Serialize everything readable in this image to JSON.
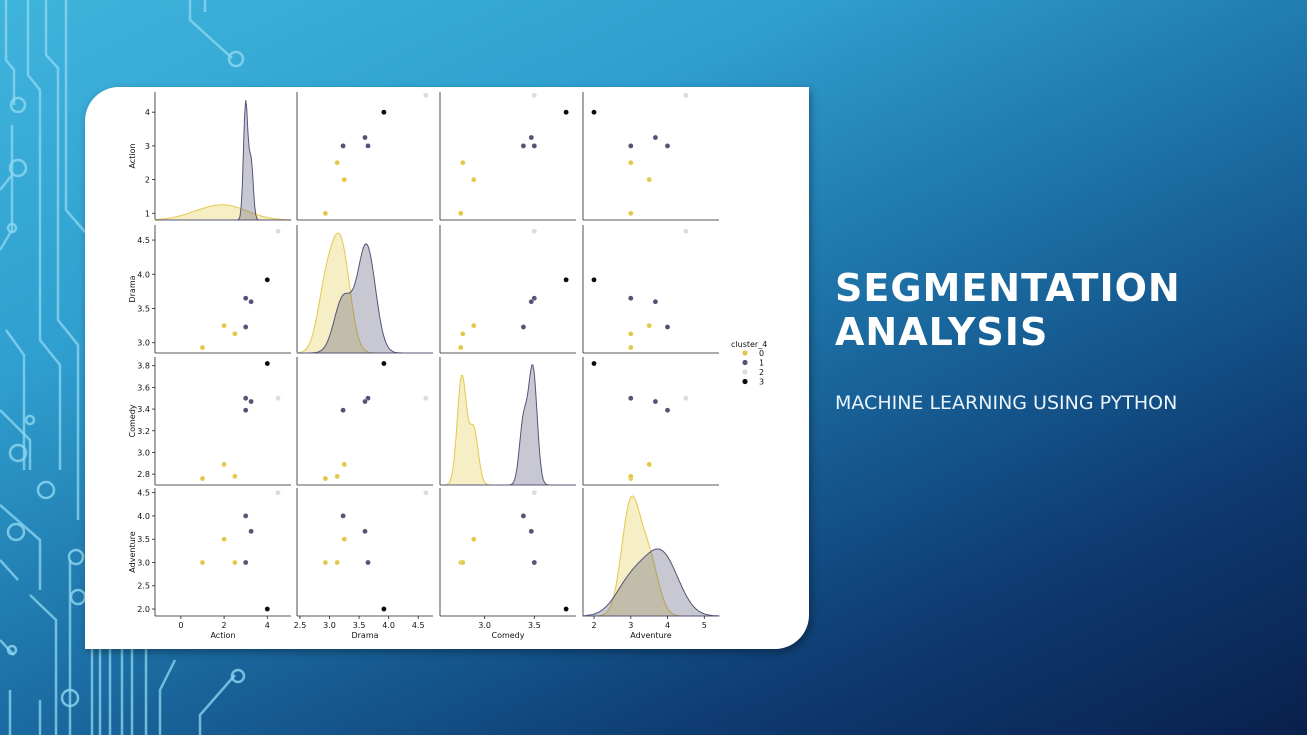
{
  "slide": {
    "title": "SEGMENTATION ANALYSIS",
    "subtitle": "MACHINE LEARNING USING PYTHON"
  },
  "colors": {
    "cluster_0": "#e3c94b",
    "cluster_1": "#545477",
    "cluster_2": "#dcdcdc",
    "cluster_3": "#0a0a0a",
    "circuit_line": "#8fd8f0"
  },
  "chart_data": {
    "type": "scatter",
    "subtype": "pairplot",
    "variables": [
      "Action",
      "Drama",
      "Comedy",
      "Adventure"
    ],
    "legend": {
      "title": "cluster_4",
      "entries": [
        "0",
        "1",
        "2",
        "3"
      ],
      "placement": "right"
    },
    "axes": {
      "Action": {
        "range": [
          -1.2,
          5.1
        ],
        "ticks": [
          0,
          2,
          4
        ],
        "ylim": [
          0.8,
          4.6
        ],
        "yticks": [
          1,
          2,
          3,
          4
        ]
      },
      "Drama": {
        "range": [
          2.45,
          4.75
        ],
        "ticks": [
          2.5,
          3.0,
          3.5,
          4.0,
          4.5
        ],
        "ylim": [
          2.85,
          4.72
        ],
        "yticks": [
          3.0,
          3.5,
          4.0,
          4.5
        ]
      },
      "Comedy": {
        "range": [
          2.55,
          3.92
        ],
        "ticks": [
          3.0,
          3.5
        ],
        "ylim": [
          2.7,
          3.88
        ],
        "yticks": [
          2.8,
          3.0,
          3.2,
          3.4,
          3.6,
          3.8
        ]
      },
      "Adventure": {
        "range": [
          1.7,
          5.4
        ],
        "ticks": [
          2,
          3,
          4,
          5
        ],
        "ylim": [
          1.85,
          4.6
        ],
        "yticks": [
          2.0,
          2.5,
          3.0,
          3.5,
          4.0,
          4.5
        ]
      }
    },
    "points": [
      {
        "cluster": 0,
        "Action": 1.0,
        "Drama": 2.93,
        "Comedy": 2.76,
        "Adventure": 3.0
      },
      {
        "cluster": 0,
        "Action": 2.0,
        "Drama": 3.25,
        "Comedy": 2.89,
        "Adventure": 3.5
      },
      {
        "cluster": 0,
        "Action": 2.5,
        "Drama": 3.13,
        "Comedy": 2.78,
        "Adventure": 3.0
      },
      {
        "cluster": 1,
        "Action": 3.0,
        "Drama": 3.65,
        "Comedy": 3.5,
        "Adventure": 3.0
      },
      {
        "cluster": 1,
        "Action": 3.0,
        "Drama": 3.23,
        "Comedy": 3.39,
        "Adventure": 4.0
      },
      {
        "cluster": 1,
        "Action": 3.25,
        "Drama": 3.6,
        "Comedy": 3.47,
        "Adventure": 3.67
      },
      {
        "cluster": 2,
        "Action": 4.5,
        "Drama": 4.63,
        "Comedy": 3.5,
        "Adventure": 4.5
      },
      {
        "cluster": 3,
        "Action": 4.0,
        "Drama": 3.92,
        "Comedy": 3.82,
        "Adventure": 2.0
      }
    ]
  }
}
